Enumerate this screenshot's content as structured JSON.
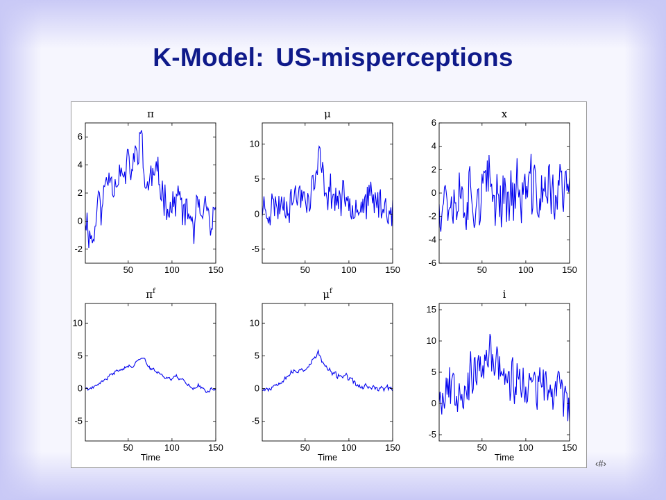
{
  "slide": {
    "title": "K-Model: US-misperceptions",
    "slide_number": "‹#›"
  },
  "colors": {
    "line": "#0000ee",
    "title": "#0f1a8a",
    "axis": "#000000"
  },
  "chart_data": [
    {
      "type": "line",
      "title": "π",
      "title_base": "π",
      "title_sup": "",
      "xlabel": "",
      "xlim": [
        1,
        150
      ],
      "ylim": [
        -3,
        7
      ],
      "xticks": [
        50,
        100,
        150
      ],
      "yticks": [
        -2,
        0,
        2,
        4,
        6
      ],
      "x": [
        1,
        150
      ],
      "seed": 11,
      "volatility": 1.1,
      "noise": 0.9,
      "anchors": [
        [
          1,
          0.5
        ],
        [
          5,
          -0.5
        ],
        [
          10,
          -1.5
        ],
        [
          15,
          1.5
        ],
        [
          20,
          0.8
        ],
        [
          25,
          3
        ],
        [
          30,
          3.5
        ],
        [
          35,
          2.8
        ],
        [
          40,
          3.8
        ],
        [
          45,
          2.8
        ],
        [
          50,
          4.0
        ],
        [
          55,
          3.6
        ],
        [
          60,
          5.0
        ],
        [
          64,
          6.6
        ],
        [
          68,
          3.0
        ],
        [
          72,
          2.5
        ],
        [
          78,
          3.3
        ],
        [
          85,
          2.8
        ],
        [
          90,
          2.2
        ],
        [
          95,
          1.5
        ],
        [
          100,
          0.8
        ],
        [
          105,
          1.8
        ],
        [
          110,
          1.2
        ],
        [
          115,
          0.3
        ],
        [
          120,
          0.5
        ],
        [
          125,
          -0.5
        ],
        [
          130,
          1.0
        ],
        [
          135,
          -0.5
        ],
        [
          140,
          0.8
        ],
        [
          145,
          -0.8
        ],
        [
          150,
          0.0
        ]
      ]
    },
    {
      "type": "line",
      "title": "μ",
      "title_base": "μ",
      "title_sup": "",
      "xlabel": "",
      "xlim": [
        1,
        150
      ],
      "ylim": [
        -7,
        13
      ],
      "xticks": [
        50,
        100,
        150
      ],
      "yticks": [
        -5,
        0,
        5,
        10
      ],
      "x": [
        1,
        150
      ],
      "seed": 23,
      "volatility": 2.0,
      "noise": 2.2,
      "anchors": [
        [
          1,
          1
        ],
        [
          10,
          1
        ],
        [
          20,
          1.5
        ],
        [
          30,
          2
        ],
        [
          40,
          2.5
        ],
        [
          50,
          3
        ],
        [
          55,
          2.5
        ],
        [
          62,
          5
        ],
        [
          66,
          8
        ],
        [
          72,
          4
        ],
        [
          80,
          3
        ],
        [
          90,
          2
        ],
        [
          100,
          2.5
        ],
        [
          110,
          1.5
        ],
        [
          120,
          1.5
        ],
        [
          130,
          2
        ],
        [
          140,
          1
        ],
        [
          150,
          1
        ]
      ]
    },
    {
      "type": "line",
      "title": "x",
      "title_base": "x",
      "title_sup": "",
      "xlabel": "",
      "xlim": [
        1,
        150
      ],
      "ylim": [
        -6,
        6
      ],
      "xticks": [
        50,
        100,
        150
      ],
      "yticks": [
        -6,
        -4,
        -2,
        0,
        2,
        4,
        6
      ],
      "x": [
        1,
        150
      ],
      "seed": 37,
      "volatility": 2.4,
      "noise": 1.8,
      "anchors": [
        [
          1,
          0
        ],
        [
          150,
          0
        ]
      ]
    },
    {
      "type": "line",
      "title": "πf",
      "title_base": "π",
      "title_sup": "f",
      "xlabel": "Time",
      "xlim": [
        1,
        150
      ],
      "ylim": [
        -8,
        13
      ],
      "xticks": [
        50,
        100,
        150
      ],
      "yticks": [
        -5,
        0,
        5,
        10
      ],
      "x": [
        1,
        150
      ],
      "seed": 41,
      "volatility": 0.25,
      "noise": 0.15,
      "anchors": [
        [
          1,
          0
        ],
        [
          10,
          0
        ],
        [
          15,
          0.5
        ],
        [
          20,
          1
        ],
        [
          25,
          1.5
        ],
        [
          30,
          2
        ],
        [
          35,
          2.5
        ],
        [
          40,
          3
        ],
        [
          45,
          3.2
        ],
        [
          50,
          3.3
        ],
        [
          55,
          3.5
        ],
        [
          60,
          4
        ],
        [
          65,
          5.0
        ],
        [
          70,
          4.2
        ],
        [
          75,
          3
        ],
        [
          80,
          2.8
        ],
        [
          85,
          2.5
        ],
        [
          90,
          2
        ],
        [
          95,
          1.5
        ],
        [
          100,
          1.5
        ],
        [
          105,
          2
        ],
        [
          110,
          1.5
        ],
        [
          115,
          1
        ],
        [
          120,
          0.5
        ],
        [
          125,
          0
        ],
        [
          130,
          0.5
        ],
        [
          135,
          0
        ],
        [
          140,
          -0.5
        ],
        [
          145,
          0
        ],
        [
          150,
          0
        ]
      ]
    },
    {
      "type": "line",
      "title": "μf",
      "title_base": "μ",
      "title_sup": "f",
      "xlabel": "Time",
      "xlim": [
        1,
        150
      ],
      "ylim": [
        -8,
        13
      ],
      "xticks": [
        50,
        100,
        150
      ],
      "yticks": [
        -5,
        0,
        5,
        10
      ],
      "x": [
        1,
        150
      ],
      "seed": 53,
      "volatility": 0.35,
      "noise": 0.3,
      "anchors": [
        [
          1,
          0
        ],
        [
          10,
          0
        ],
        [
          15,
          0.5
        ],
        [
          20,
          1
        ],
        [
          25,
          1.5
        ],
        [
          30,
          2
        ],
        [
          35,
          2.5
        ],
        [
          40,
          2.5
        ],
        [
          45,
          3
        ],
        [
          50,
          3
        ],
        [
          55,
          3.5
        ],
        [
          60,
          4.5
        ],
        [
          65,
          5.5
        ],
        [
          70,
          4
        ],
        [
          75,
          3
        ],
        [
          80,
          2.5
        ],
        [
          85,
          2
        ],
        [
          90,
          2
        ],
        [
          95,
          2
        ],
        [
          100,
          1.5
        ],
        [
          105,
          1
        ],
        [
          110,
          0.5
        ],
        [
          115,
          0
        ],
        [
          120,
          0.5
        ],
        [
          125,
          0
        ],
        [
          130,
          0
        ],
        [
          135,
          0
        ],
        [
          140,
          0
        ],
        [
          145,
          0
        ],
        [
          150,
          0
        ]
      ]
    },
    {
      "type": "line",
      "title": "i",
      "title_base": "i",
      "title_sup": "",
      "xlabel": "Time",
      "xlim": [
        1,
        150
      ],
      "ylim": [
        -6,
        16
      ],
      "xticks": [
        50,
        100,
        150
      ],
      "yticks": [
        -5,
        0,
        5,
        10,
        15
      ],
      "x": [
        1,
        150
      ],
      "seed": 67,
      "volatility": 3.2,
      "noise": 2.5,
      "anchors": [
        [
          1,
          2
        ],
        [
          20,
          3
        ],
        [
          40,
          4
        ],
        [
          55,
          6
        ],
        [
          62,
          8
        ],
        [
          70,
          6
        ],
        [
          80,
          4
        ],
        [
          100,
          3
        ],
        [
          120,
          2
        ],
        [
          140,
          2
        ],
        [
          150,
          1
        ]
      ]
    }
  ]
}
